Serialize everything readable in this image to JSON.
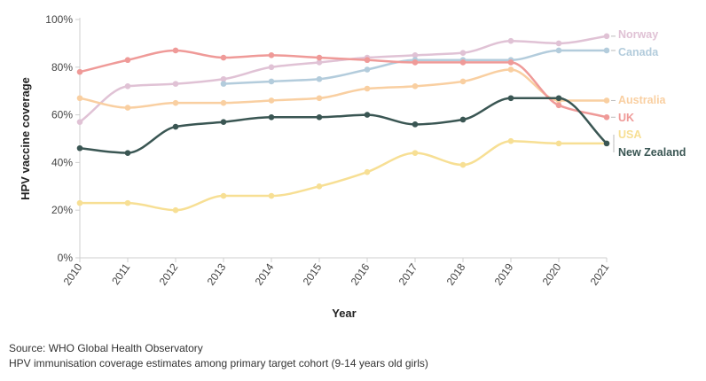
{
  "chart_data": {
    "type": "line",
    "title": "",
    "xlabel": "Year",
    "ylabel": "HPV vaccine coverage",
    "x": [
      2010,
      2011,
      2012,
      2013,
      2014,
      2015,
      2016,
      2017,
      2018,
      2019,
      2020,
      2021
    ],
    "x_tick_labels": [
      "2010",
      "2011",
      "2012",
      "2013",
      "2014",
      "2015",
      "2016",
      "2017",
      "2018",
      "2019",
      "2020",
      "2021"
    ],
    "ylim": [
      0,
      100
    ],
    "y_ticks": [
      0,
      20,
      40,
      60,
      80,
      100
    ],
    "y_tick_labels": [
      "0%",
      "20%",
      "40%",
      "60%",
      "80%",
      "100%"
    ],
    "grid": false,
    "series": [
      {
        "name": "Norway",
        "color": "#e0c2d5",
        "values": [
          57,
          72,
          73,
          75,
          80,
          82,
          84,
          85,
          86,
          91,
          90,
          93
        ]
      },
      {
        "name": "Canada",
        "color": "#b3ccdc",
        "values": [
          null,
          null,
          null,
          73,
          74,
          75,
          79,
          83,
          83,
          83,
          87,
          87
        ]
      },
      {
        "name": "Australia",
        "color": "#f9cfa1",
        "values": [
          67,
          63,
          65,
          65,
          66,
          67,
          71,
          72,
          74,
          79,
          66,
          66
        ]
      },
      {
        "name": "UK",
        "color": "#ef9a98",
        "values": [
          78,
          83,
          87,
          84,
          85,
          84,
          83,
          82,
          82,
          82,
          64,
          59
        ]
      },
      {
        "name": "USA",
        "color": "#f7df94",
        "values": [
          23,
          23,
          20,
          26,
          26,
          30,
          36,
          44,
          39,
          49,
          48,
          48
        ]
      },
      {
        "name": "New Zealand",
        "color": "#3a5653",
        "values": [
          46,
          44,
          55,
          57,
          59,
          59,
          60,
          56,
          58,
          67,
          67,
          48
        ]
      }
    ]
  },
  "source_line": "Source: WHO Global Health Observatory",
  "note_line": "HPV immunisation coverage estimates among primary target cohort (9-14 years old girls)"
}
